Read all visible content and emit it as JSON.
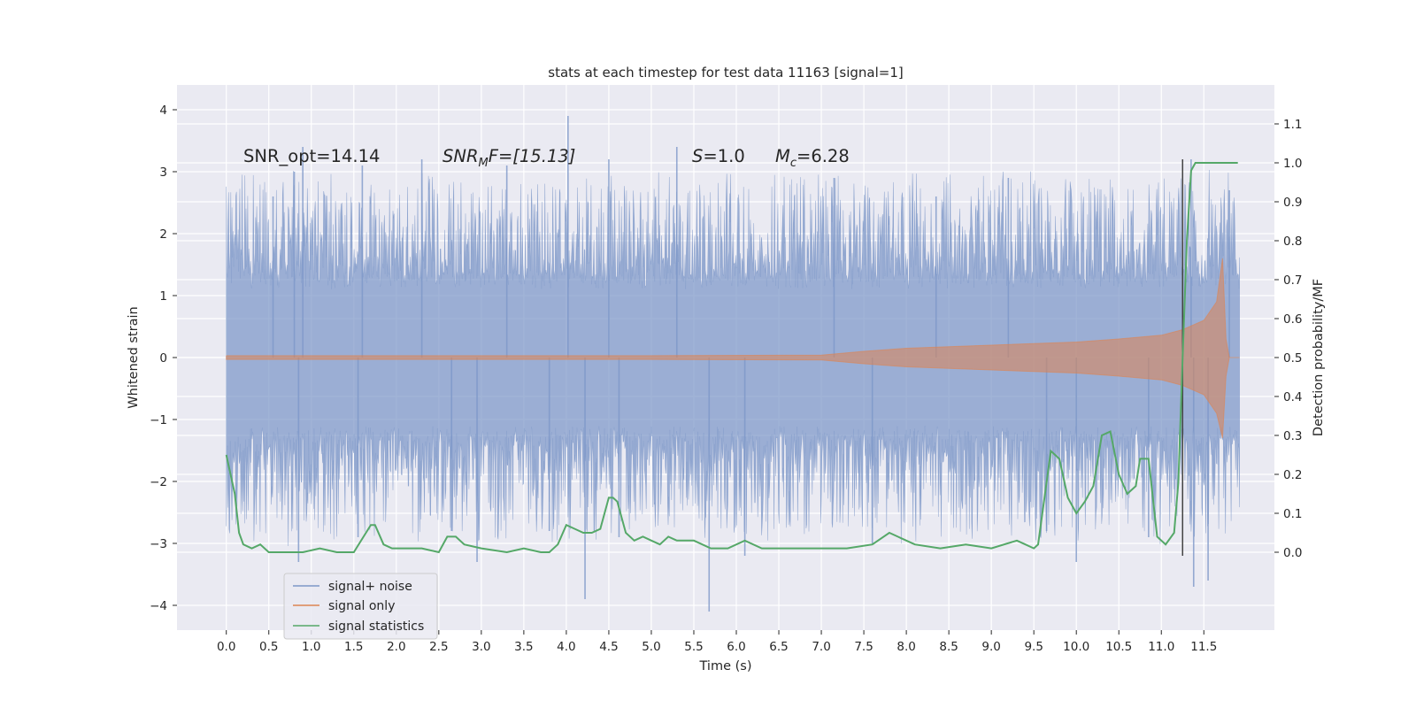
{
  "chart_data": {
    "type": "line",
    "title": "stats at each timestep for test data 11163 [signal=1]",
    "xlabel": "Time (s)",
    "ylabel": "Whitened strain",
    "ylabel_right": "Detection probability/MF",
    "xlim": [
      -0.58,
      12.33
    ],
    "ylim": [
      -4.4,
      4.4
    ],
    "ylim_right": [
      -0.2,
      1.2
    ],
    "x_ticks": [
      0.0,
      0.5,
      1.0,
      1.5,
      2.0,
      2.5,
      3.0,
      3.5,
      4.0,
      4.5,
      5.0,
      5.5,
      6.0,
      6.5,
      7.0,
      7.5,
      8.0,
      8.5,
      9.0,
      9.5,
      10.0,
      10.5,
      11.0,
      11.5
    ],
    "x_tick_labels": [
      "0.0",
      "0.5",
      "1.0",
      "1.5",
      "2.0",
      "2.5",
      "3.0",
      "3.5",
      "4.0",
      "4.5",
      "5.0",
      "5.5",
      "6.0",
      "6.5",
      "7.0",
      "7.5",
      "8.0",
      "8.5",
      "9.0",
      "9.5",
      "10.0",
      "10.5",
      "11.0",
      "11.5"
    ],
    "y_ticks": [
      -4,
      -3,
      -2,
      -1,
      0,
      1,
      2,
      3,
      4
    ],
    "y_tick_labels": [
      "−4",
      "−3",
      "−2",
      "−1",
      "0",
      "1",
      "2",
      "3",
      "4"
    ],
    "y_right_ticks": [
      0.0,
      0.1,
      0.2,
      0.3,
      0.4,
      0.5,
      0.6,
      0.7,
      0.8,
      0.9,
      1.0,
      1.1
    ],
    "y_right_tick_labels": [
      "0.0",
      "0.1",
      "0.2",
      "0.3",
      "0.4",
      "0.5",
      "0.6",
      "0.7",
      "0.8",
      "0.9",
      "1.0",
      "1.1"
    ],
    "grid": true,
    "legend_position": "bottom-left",
    "annotations": {
      "snr_opt": "SNR_opt=14.14",
      "snr_mf_name": "SNR",
      "snr_mf_sub": "M",
      "snr_mf_rest": "F=[15.13]",
      "s_name": "S",
      "s_rest": "=1.0",
      "mc_name": "M",
      "mc_sub": "c",
      "mc_rest": "=6.28"
    },
    "merger_time": 11.25,
    "series": [
      {
        "name": "signal+ noise",
        "color": "#7d97c8",
        "t_start": 0.0,
        "t_end": 11.92,
        "envelope_core": 1.1,
        "envelope_typical_peak": 2.3,
        "spikes": [
          [
            0.55,
            2.6
          ],
          [
            0.8,
            3.0
          ],
          [
            0.85,
            -3.3
          ],
          [
            0.9,
            3.4
          ],
          [
            1.6,
            3.1
          ],
          [
            1.55,
            -2.9
          ],
          [
            2.3,
            3.2
          ],
          [
            2.65,
            -2.8
          ],
          [
            2.95,
            -3.3
          ],
          [
            3.3,
            3.1
          ],
          [
            3.8,
            -2.8
          ],
          [
            4.02,
            3.9
          ],
          [
            4.22,
            -3.9
          ],
          [
            4.5,
            3.2
          ],
          [
            4.62,
            -2.9
          ],
          [
            5.3,
            3.4
          ],
          [
            5.68,
            -4.1
          ],
          [
            6.1,
            -3.2
          ],
          [
            7.15,
            2.9
          ],
          [
            7.6,
            -3.0
          ],
          [
            8.35,
            2.6
          ],
          [
            9.2,
            2.9
          ],
          [
            9.65,
            -2.8
          ],
          [
            10.0,
            -3.3
          ],
          [
            10.85,
            -2.9
          ],
          [
            11.35,
            3.2
          ],
          [
            11.38,
            -3.7
          ],
          [
            11.55,
            -3.6
          ],
          [
            11.8,
            2.7
          ]
        ]
      },
      {
        "name": "signal only",
        "color": "#dd8452",
        "chirp": {
          "amplitude_points": [
            [
              0.0,
              0.03
            ],
            [
              5.0,
              0.03
            ],
            [
              7.0,
              0.04
            ],
            [
              7.5,
              0.1
            ],
            [
              8.0,
              0.15
            ],
            [
              9.0,
              0.2
            ],
            [
              10.0,
              0.25
            ],
            [
              10.5,
              0.3
            ],
            [
              11.0,
              0.36
            ],
            [
              11.25,
              0.45
            ],
            [
              11.5,
              0.6
            ],
            [
              11.65,
              0.9
            ],
            [
              11.72,
              1.6
            ],
            [
              11.76,
              0.3
            ],
            [
              11.8,
              0.0
            ],
            [
              11.92,
              0.0
            ]
          ],
          "lower_scale": 1.0
        }
      },
      {
        "name": "signal statistics",
        "color": "#55a868",
        "x": [
          0.0,
          0.1,
          0.15,
          0.2,
          0.3,
          0.4,
          0.5,
          0.7,
          0.9,
          1.1,
          1.3,
          1.5,
          1.7,
          1.75,
          1.85,
          1.95,
          2.1,
          2.3,
          2.5,
          2.6,
          2.7,
          2.8,
          3.0,
          3.3,
          3.5,
          3.7,
          3.8,
          3.9,
          4.0,
          4.1,
          4.2,
          4.3,
          4.4,
          4.5,
          4.55,
          4.6,
          4.7,
          4.8,
          4.9,
          5.0,
          5.1,
          5.2,
          5.3,
          5.5,
          5.7,
          5.9,
          6.1,
          6.3,
          6.5,
          6.7,
          7.0,
          7.3,
          7.6,
          7.8,
          7.9,
          8.1,
          8.4,
          8.7,
          9.0,
          9.3,
          9.4,
          9.5,
          9.55,
          9.6,
          9.7,
          9.8,
          9.9,
          10.0,
          10.1,
          10.2,
          10.3,
          10.4,
          10.5,
          10.6,
          10.7,
          10.75,
          10.85,
          10.95,
          11.05,
          11.15,
          11.2,
          11.25,
          11.3,
          11.35,
          11.4,
          11.5,
          11.7,
          11.9
        ],
        "y": [
          0.25,
          0.15,
          0.05,
          0.02,
          0.01,
          0.02,
          0.0,
          0.0,
          0.0,
          0.01,
          0.0,
          0.0,
          0.07,
          0.07,
          0.02,
          0.01,
          0.01,
          0.01,
          0.0,
          0.04,
          0.04,
          0.02,
          0.01,
          0.0,
          0.01,
          0.0,
          0.0,
          0.02,
          0.07,
          0.06,
          0.05,
          0.05,
          0.06,
          0.14,
          0.14,
          0.13,
          0.05,
          0.03,
          0.04,
          0.03,
          0.02,
          0.04,
          0.03,
          0.03,
          0.01,
          0.01,
          0.03,
          0.01,
          0.01,
          0.01,
          0.01,
          0.01,
          0.02,
          0.05,
          0.04,
          0.02,
          0.01,
          0.02,
          0.01,
          0.03,
          0.02,
          0.01,
          0.02,
          0.1,
          0.26,
          0.24,
          0.14,
          0.1,
          0.13,
          0.17,
          0.3,
          0.31,
          0.2,
          0.15,
          0.17,
          0.24,
          0.24,
          0.04,
          0.02,
          0.05,
          0.18,
          0.5,
          0.8,
          0.98,
          1.0,
          1.0,
          1.0,
          1.0
        ]
      }
    ]
  }
}
